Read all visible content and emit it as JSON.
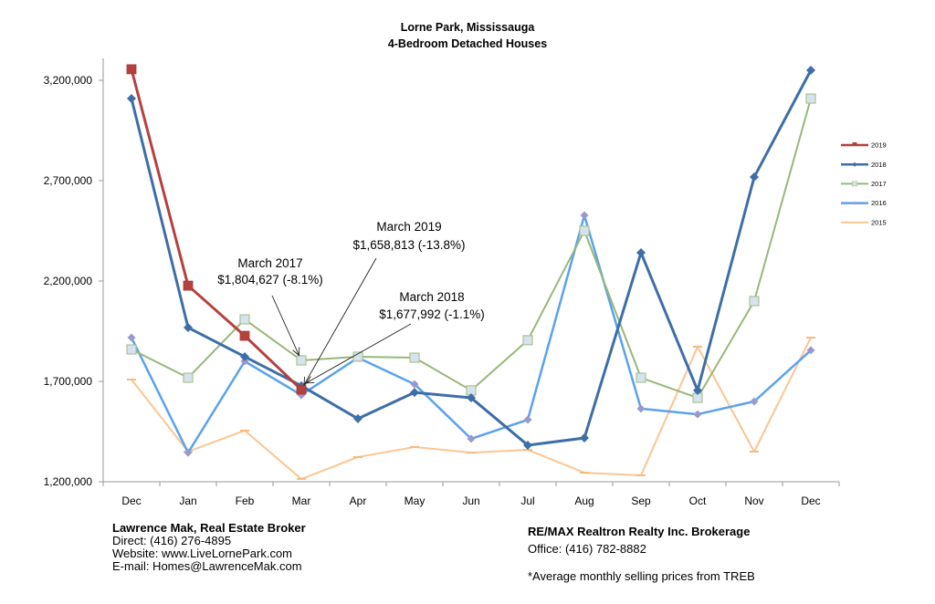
{
  "chart_data": {
    "type": "line",
    "title": "Lorne Park, Mississauga",
    "subtitle": "4-Bedroom Detached Houses",
    "xlabel": "",
    "ylabel": "",
    "categories": [
      "Dec",
      "Jan",
      "Feb",
      "Mar",
      "Apr",
      "May",
      "Jun",
      "Jul",
      "Aug",
      "Sep",
      "Oct",
      "Nov",
      "Dec"
    ],
    "ylim": [
      1200000,
      3300000
    ],
    "yticks": [
      1200000,
      1700000,
      2200000,
      2700000,
      3200000
    ],
    "ytick_labels": [
      "1,200,000",
      "1,700,000",
      "2,200,000",
      "2,700,000",
      "3,200,000"
    ],
    "grid": false,
    "legend_position": "right",
    "series": [
      {
        "name": "2019",
        "color": "#b5413e",
        "marker": "square",
        "width": 3,
        "values": [
          3255000,
          2177000,
          1927000,
          1658813,
          null,
          null,
          null,
          null,
          null,
          null,
          null,
          null,
          null
        ]
      },
      {
        "name": "2018",
        "color": "#3e6ea7",
        "marker": "diamond",
        "width": 3,
        "values": [
          3109000,
          1968000,
          1823000,
          1677992,
          1514000,
          1645000,
          1618000,
          1382000,
          1418000,
          2341000,
          1655000,
          2718000,
          3250000
        ]
      },
      {
        "name": "2017",
        "color": "#98b77a",
        "marker": "square-light",
        "width": 2,
        "values": [
          1859000,
          1718000,
          2009000,
          1804627,
          1823000,
          1818000,
          1655000,
          1905000,
          2450000,
          1718000,
          1618000,
          2100000,
          3109000
        ]
      },
      {
        "name": "2016",
        "color": "#5aa2ee",
        "marker": "diamond-light",
        "width": 2.5,
        "values": [
          1918000,
          1345000,
          1800000,
          1632000,
          1818000,
          1686000,
          1414000,
          1509000,
          2527000,
          1564000,
          1536000,
          1600000,
          1855000
        ]
      },
      {
        "name": "2015",
        "color": "#fcc592",
        "marker": "dash",
        "width": 2,
        "values": [
          1709000,
          1350000,
          1455000,
          1214000,
          1323000,
          1373000,
          1345000,
          1359000,
          1245000,
          1232000,
          1873000,
          1350000,
          1918000
        ]
      }
    ],
    "annotations": [
      {
        "series": "2017",
        "category_index": 3,
        "line1": "March 2017",
        "line2": "$1,804,627 (-8.1%)"
      },
      {
        "series": "2019",
        "category_index": 3,
        "line1": "March 2019",
        "line2": "$1,658,813 (-13.8%)"
      },
      {
        "series": "2018",
        "category_index": 3,
        "line1": "March 2018",
        "line2": "$1,677,992 (-1.1%)"
      }
    ]
  },
  "footer": {
    "broker_name": "Lawrence Mak, Real Estate Broker",
    "direct": "Direct:  (416) 276-4895",
    "website": "Website:  www.LiveLornePark.com",
    "email": "E-mail:  Homes@LawrenceMak.com",
    "brokerage": "RE/MAX Realtron Realty Inc. Brokerage",
    "office": "Office: (416) 782-8882",
    "note": "*Average monthly selling prices from TREB"
  }
}
